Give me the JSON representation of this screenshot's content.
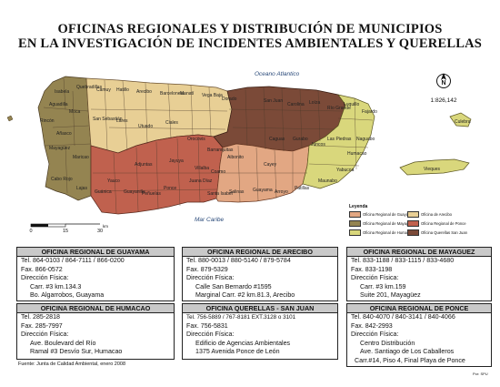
{
  "title": {
    "line1": "OFICINAS REGIONALES Y DISTRIBUCIÓN DE MUNICIPIOS",
    "line2": "EN LA INVESTIGACIÓN DE INCIDENTES AMBIENTALES Y QUERELLAS"
  },
  "map": {
    "sea_north": "Oceano Atlantico",
    "sea_south": "Mar Caribe",
    "north_symbol": "N",
    "scale_ratio": "1:826,142",
    "scale_ticks": [
      "0",
      "15",
      "30"
    ],
    "scale_unit": "km",
    "colors": {
      "guayama": "#e2a783",
      "arecibo": "#e8cf95",
      "mayaguez": "#948451",
      "humacao": "#d9d77c",
      "ponce": "#c0614e",
      "san_juan": "#7b4a38"
    },
    "municipio_labels": [
      "Isabela",
      "Quebradillas",
      "Camuy",
      "Hatillo",
      "Arecibo",
      "Barceloneta",
      "Manatí",
      "Vega Baja",
      "Dorado",
      "San Juan",
      "Carolina",
      "Loíza",
      "Río Grande",
      "Luquillo",
      "Fajardo",
      "Aguadilla",
      "Moca",
      "San Sebastián",
      "Lares",
      "Utuado",
      "Ciales",
      "Orocovis",
      "Barranquitas",
      "Aibonito",
      "Cayey",
      "Caguas",
      "Gurabo",
      "Juncos",
      "Las Piedras",
      "Naguabo",
      "Humacao",
      "Yabucoa",
      "Maunabo",
      "Patillas",
      "Arroyo",
      "Guayama",
      "Salinas",
      "Santa Isabel",
      "Coamo",
      "Juana Díaz",
      "Ponce",
      "Peñuelas",
      "Guayanilla",
      "Yauco",
      "Guánica",
      "Lajas",
      "Cabo Rojo",
      "Mayagüez",
      "Añasco",
      "Rincón",
      "Maricao",
      "Adjuntas",
      "Jayuya",
      "Villalba",
      "Vieques",
      "Culebra"
    ]
  },
  "legend": {
    "title": "Leyenda",
    "items": [
      "Oficina Regional de Guayama",
      "Oficina de Arecibo",
      "Oficina Regional de Mayagüez",
      "Oficina Regional de Ponce",
      "Oficina Regional de Humacao",
      "Oficina Querellas San Juan"
    ]
  },
  "offices": {
    "guayama": {
      "header": "OFICINA REGIONAL DE GUAYAMA",
      "tel": "Tel. 864-0103 / 864-7111 / 866-0200",
      "fax": "Fax. 866-0572",
      "dir_label": "Dirección Física:",
      "addr1": "Carr. #3 km.134.3",
      "addr2": "Bo. Algarrobos, Guayama"
    },
    "arecibo": {
      "header": "OFICINA REGIONAL DE ARECIBO",
      "tel": "Tel. 880-0013 / 880-5140 / 879-5784",
      "fax": "Fax. 879-5329",
      "dir_label": "Dirección Física:",
      "addr1": "Calle San Bernardo #1595",
      "addr2": "Marginal Carr. #2 km.81.3, Arecibo"
    },
    "mayaguez": {
      "header": "OFICINA REGIONAL DE MAYAGUEZ",
      "tel": "Tel. 833-1188 / 833-1115 / 833-4680",
      "fax": "Fax. 833-1198",
      "dir_label": "Dirección Física:",
      "addr1": "Carr. #3 km.159",
      "addr2": "Suite 201, Mayagüez"
    },
    "humacao": {
      "header": "OFICINA REGIONAL DE HUMACAO",
      "tel": "Tel. 285-2818",
      "fax": "Fax. 285-7997",
      "dir_label": "Dirección Física:",
      "addr1": "Ave. Boulevard del Río",
      "addr2": "Ramal #3 Desvío Sur, Humacao"
    },
    "san_juan": {
      "header": "OFICINA QUERELLAS - SAN JUAN",
      "tel": "Tel. 756-5889 / 767-8181 EXT.3128 o 3101",
      "fax": "Fax. 756-5831",
      "dir_label": "Dirección Física:",
      "addr1": "Edificio de Agencias Ambientales",
      "addr2": "1375 Avenida Ponce de León"
    },
    "ponce": {
      "header": "OFICINA REGIONAL DE PONCE",
      "tel": "Tel. 840-4070 / 840-3141 / 840-4066",
      "fax": "Fax. 842-2993",
      "dir_label": "Dirección Física:",
      "addr1": "Centro Distribución",
      "addr2": "Ave. Santiago de Los Caballeros",
      "addr3": "Carr.#14, Piso 4, Final Playa de Ponce"
    }
  },
  "footer": {
    "source": "Fuente: Junta de Calidad Ambiental, enero 2008",
    "credit": "Por: SPU"
  }
}
